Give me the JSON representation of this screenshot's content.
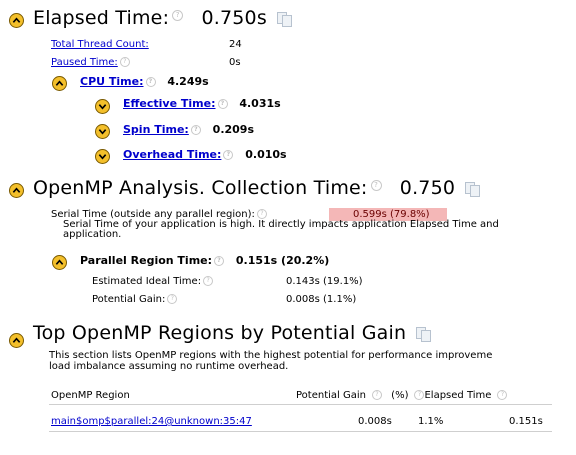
{
  "elapsed": {
    "title": "Elapsed Time:",
    "value": "0.750s",
    "total_thread_count_label": "Total Thread Count:",
    "total_thread_count_value": "24",
    "paused_time_label": "Paused Time:",
    "paused_time_value": "0s",
    "cpu_time_label": "CPU Time:",
    "cpu_time_value": "4.249s",
    "effective_time_label": "Effective Time:",
    "effective_time_value": "4.031s",
    "spin_time_label": "Spin Time:",
    "spin_time_value": "0.209s",
    "overhead_time_label": "Overhead Time:",
    "overhead_time_value": "0.010s"
  },
  "openmp": {
    "title": "OpenMP Analysis. Collection Time:",
    "value": "0.750",
    "serial_time_label": "Serial Time (outside any parallel region):",
    "serial_time_value": "0.599s (79.8%)",
    "serial_note_line1": "Serial Time of your application is high. It directly impacts application Elapsed Time and",
    "serial_note_line2": "application.",
    "parallel_region_label": "Parallel Region Time:",
    "parallel_region_value": "0.151s (20.2%)",
    "ideal_time_label": "Estimated Ideal Time:",
    "ideal_time_value": "0.143s (19.1%)",
    "potential_gain_label": "Potential Gain:",
    "potential_gain_value": "0.008s (1.1%)",
    "highlight_color": "#f4b7b7"
  },
  "top_regions": {
    "title": "Top OpenMP Regions by Potential Gain",
    "desc_line1": "This section lists OpenMP regions with the highest potential for performance improveme",
    "desc_line2": "load imbalance assuming no runtime overhead.",
    "columns": {
      "region": "OpenMP Region",
      "potential_gain": "Potential Gain",
      "pct": "(%)",
      "elapsed": "Elapsed Time"
    },
    "rows": [
      {
        "region": "main$omp$parallel:24@unknown:35:47",
        "gain": "0.008s",
        "pct": "1.1%",
        "elapsed": "0.151s"
      }
    ]
  }
}
